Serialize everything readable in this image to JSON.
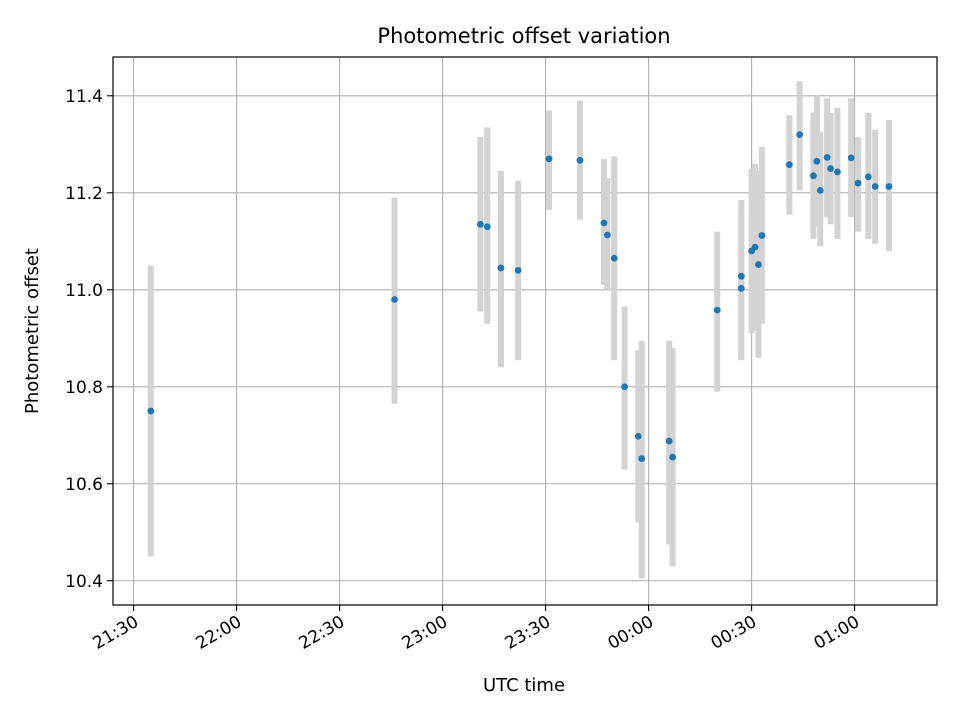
{
  "chart_data": {
    "type": "scatter",
    "title": "Photometric offset variation",
    "xlabel": "UTC time",
    "ylabel": "Photometric offset",
    "grid": true,
    "x_tick_labels": [
      "21:30",
      "22:00",
      "22:30",
      "23:00",
      "23:30",
      "00:00",
      "00:30",
      "01:00"
    ],
    "y_tick_labels": [
      "10.4",
      "10.6",
      "10.8",
      "11.0",
      "11.2",
      "11.4"
    ],
    "y_ticks": [
      10.4,
      10.6,
      10.8,
      11.0,
      11.2,
      11.4
    ],
    "xlim": [
      "21:24",
      "01:24"
    ],
    "ylim": [
      10.35,
      11.48
    ],
    "colors": {
      "point": "#1f77b4",
      "errorbar": "#d3d3d3",
      "grid": "#b0b0b0"
    },
    "series": [
      {
        "points": [
          {
            "x": "21:35",
            "y": 10.75,
            "lo": 10.45,
            "hi": 11.05
          },
          {
            "x": "22:46",
            "y": 10.98,
            "lo": 10.765,
            "hi": 11.19
          },
          {
            "x": "23:11",
            "y": 11.135,
            "lo": 10.955,
            "hi": 11.315
          },
          {
            "x": "23:13",
            "y": 11.13,
            "lo": 10.93,
            "hi": 11.335
          },
          {
            "x": "23:17",
            "y": 11.045,
            "lo": 10.84,
            "hi": 11.245
          },
          {
            "x": "23:22",
            "y": 11.04,
            "lo": 10.855,
            "hi": 11.225
          },
          {
            "x": "23:31",
            "y": 11.27,
            "lo": 11.165,
            "hi": 11.37
          },
          {
            "x": "23:40",
            "y": 11.267,
            "lo": 11.145,
            "hi": 11.39
          },
          {
            "x": "23:47",
            "y": 11.138,
            "lo": 11.01,
            "hi": 11.27
          },
          {
            "x": "23:48",
            "y": 11.113,
            "lo": 11.0,
            "hi": 11.23
          },
          {
            "x": "23:50",
            "y": 11.065,
            "lo": 10.855,
            "hi": 11.275
          },
          {
            "x": "23:53",
            "y": 10.8,
            "lo": 10.63,
            "hi": 10.965
          },
          {
            "x": "23:57",
            "y": 10.698,
            "lo": 10.52,
            "hi": 10.875
          },
          {
            "x": "23:58",
            "y": 10.652,
            "lo": 10.405,
            "hi": 10.895
          },
          {
            "x": "00:06",
            "y": 10.688,
            "lo": 10.475,
            "hi": 10.895
          },
          {
            "x": "00:07",
            "y": 10.655,
            "lo": 10.43,
            "hi": 10.88
          },
          {
            "x": "00:20",
            "y": 10.958,
            "lo": 10.79,
            "hi": 11.12
          },
          {
            "x": "00:27",
            "y": 11.028,
            "lo": 10.865,
            "hi": 11.185
          },
          {
            "x": "00:27",
            "y": 11.003,
            "lo": 10.855,
            "hi": 11.155
          },
          {
            "x": "00:30",
            "y": 11.08,
            "lo": 10.91,
            "hi": 11.25
          },
          {
            "x": "00:31",
            "y": 11.088,
            "lo": 10.915,
            "hi": 11.26
          },
          {
            "x": "00:32",
            "y": 11.052,
            "lo": 10.86,
            "hi": 11.245
          },
          {
            "x": "00:33",
            "y": 11.112,
            "lo": 10.93,
            "hi": 11.295
          },
          {
            "x": "00:41",
            "y": 11.258,
            "lo": 11.155,
            "hi": 11.36
          },
          {
            "x": "00:44",
            "y": 11.32,
            "lo": 11.205,
            "hi": 11.43
          },
          {
            "x": "00:48",
            "y": 11.235,
            "lo": 11.105,
            "hi": 11.365
          },
          {
            "x": "00:49",
            "y": 11.265,
            "lo": 11.13,
            "hi": 11.4
          },
          {
            "x": "00:50",
            "y": 11.205,
            "lo": 11.09,
            "hi": 11.325
          },
          {
            "x": "00:52",
            "y": 11.273,
            "lo": 11.15,
            "hi": 11.395
          },
          {
            "x": "00:53",
            "y": 11.25,
            "lo": 11.135,
            "hi": 11.365
          },
          {
            "x": "00:55",
            "y": 11.243,
            "lo": 11.105,
            "hi": 11.375
          },
          {
            "x": "00:59",
            "y": 11.272,
            "lo": 11.15,
            "hi": 11.395
          },
          {
            "x": "01:01",
            "y": 11.22,
            "lo": 11.12,
            "hi": 11.315
          },
          {
            "x": "01:04",
            "y": 11.233,
            "lo": 11.105,
            "hi": 11.365
          },
          {
            "x": "01:06",
            "y": 11.213,
            "lo": 11.095,
            "hi": 11.33
          },
          {
            "x": "01:10",
            "y": 11.213,
            "lo": 11.08,
            "hi": 11.35
          }
        ]
      }
    ]
  }
}
